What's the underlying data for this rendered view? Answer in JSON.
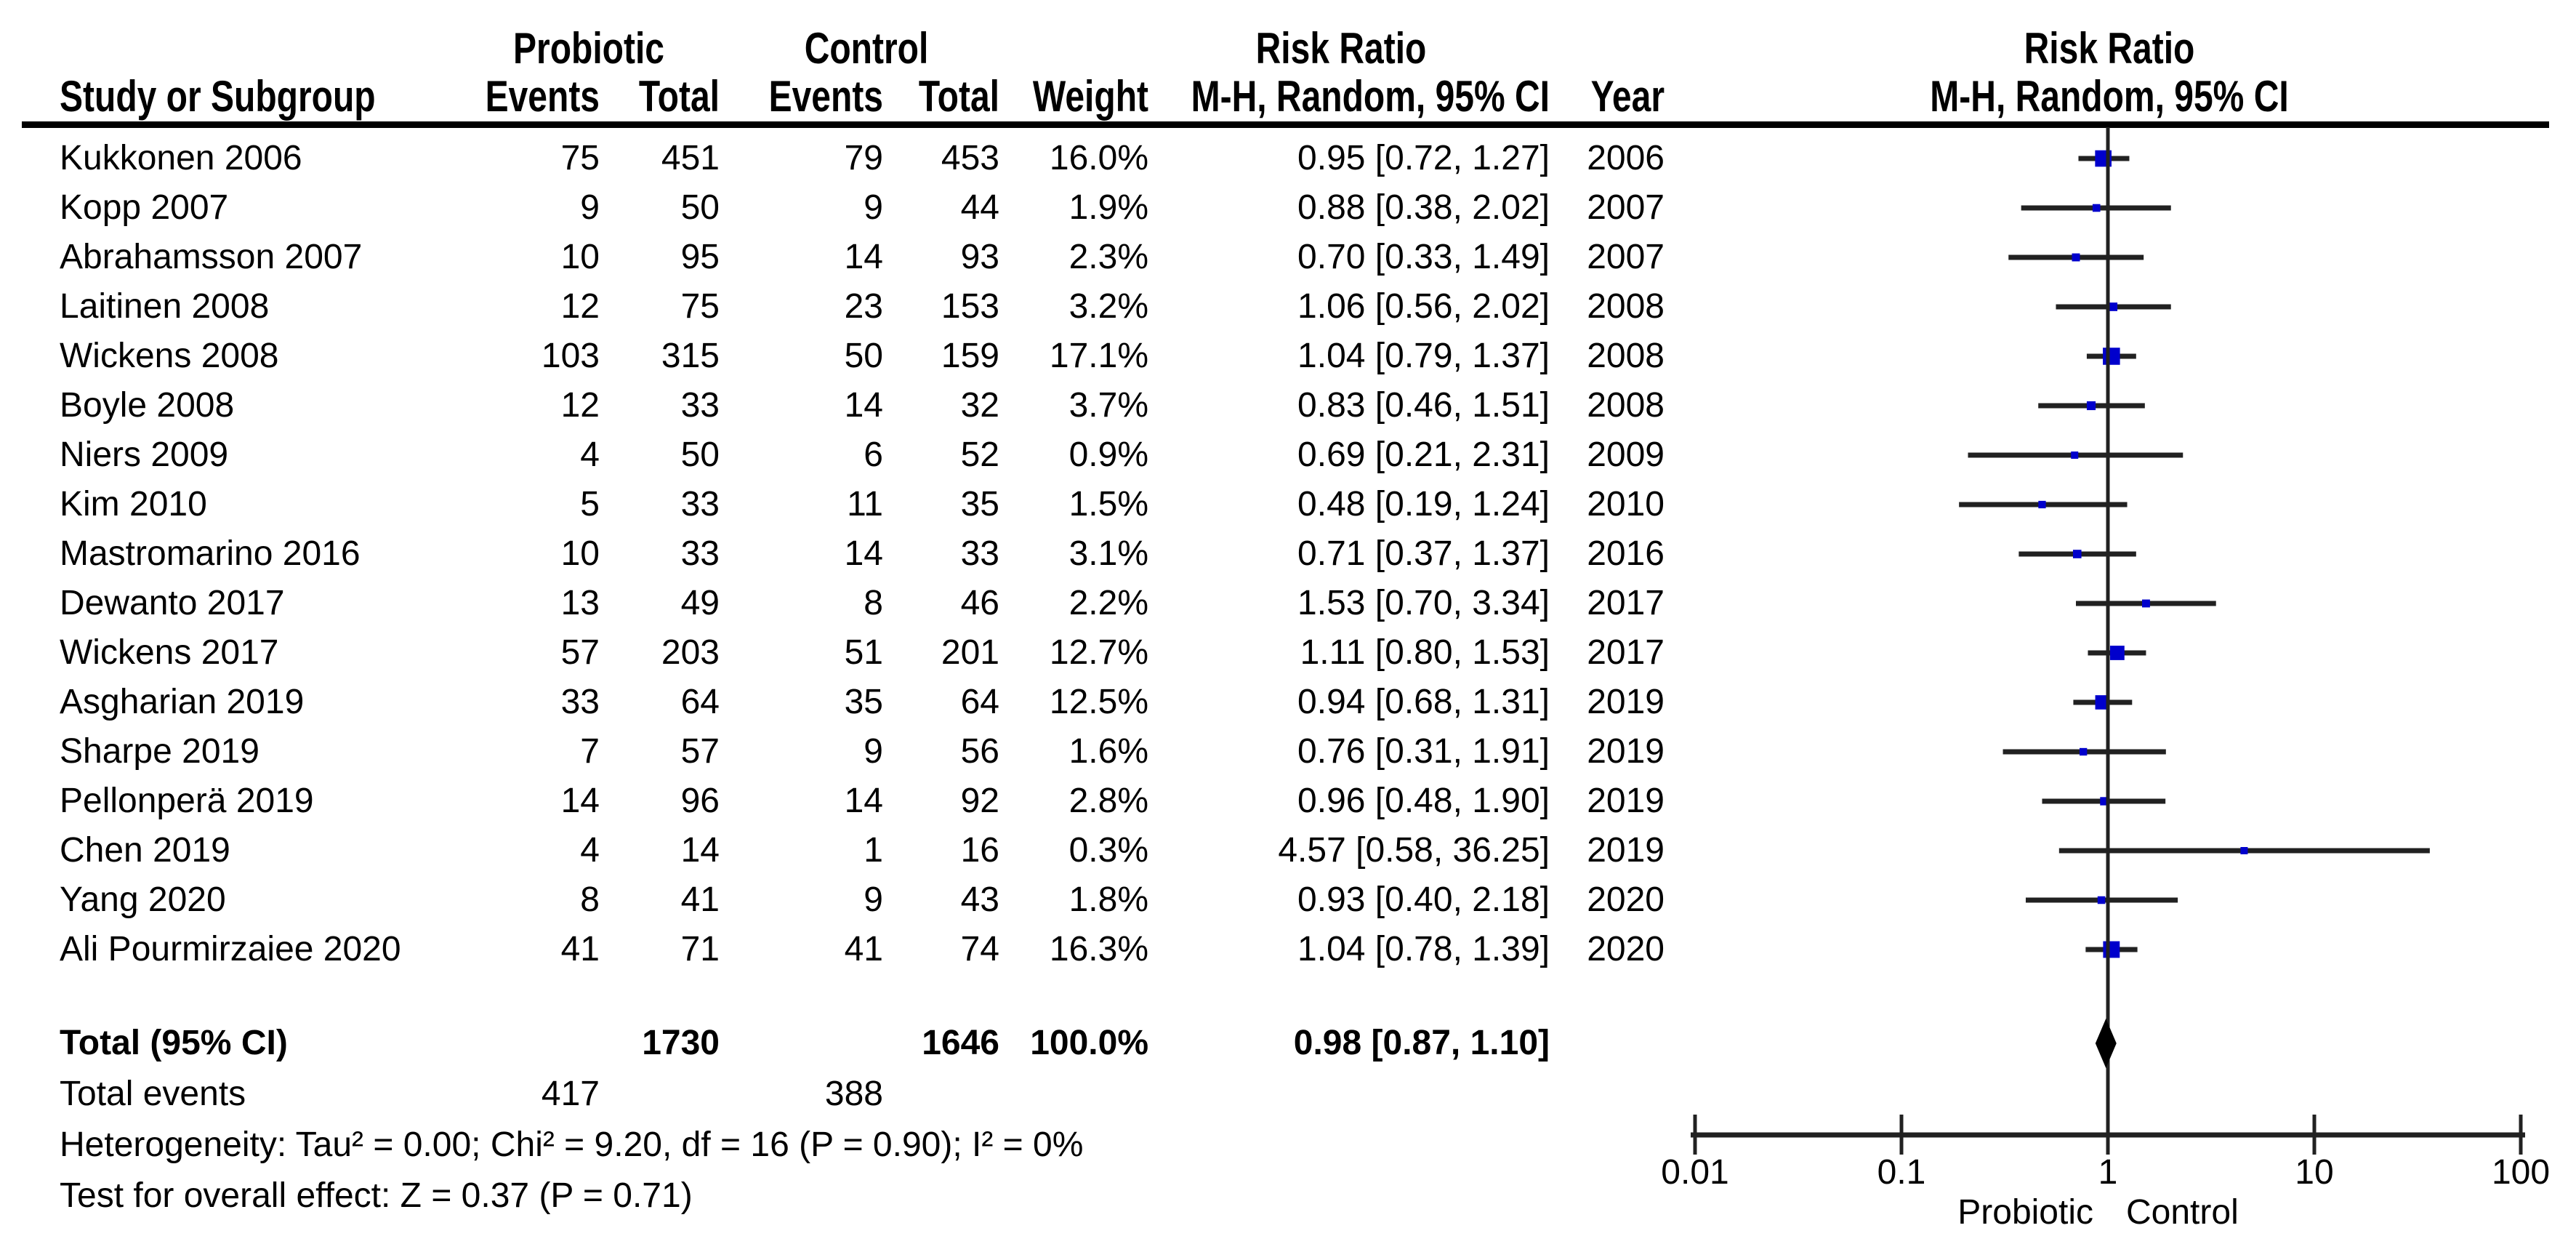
{
  "chart_data": {
    "type": "forest",
    "effect_measure": "Risk Ratio",
    "method": "M-H, Random, 95% CI",
    "group1": "Probiotic",
    "group2": "Control",
    "columns": [
      "Study or Subgroup",
      "Events",
      "Total",
      "Events",
      "Total",
      "Weight",
      "M-H, Random, 95% CI",
      "Year"
    ],
    "studies": [
      {
        "name": "Kukkonen 2006",
        "events1": "75",
        "total1": "451",
        "events2": "79",
        "total2": "453",
        "weight": "16.0%",
        "weight_value": 16.0,
        "rr": 0.95,
        "ci_low": 0.72,
        "ci_high": 1.27,
        "ci_text": "0.95 [0.72, 1.27]",
        "year": "2006"
      },
      {
        "name": "Kopp 2007",
        "events1": "9",
        "total1": "50",
        "events2": "9",
        "total2": "44",
        "weight": "1.9%",
        "weight_value": 1.9,
        "rr": 0.88,
        "ci_low": 0.38,
        "ci_high": 2.02,
        "ci_text": "0.88 [0.38, 2.02]",
        "year": "2007"
      },
      {
        "name": "Abrahamsson 2007",
        "events1": "10",
        "total1": "95",
        "events2": "14",
        "total2": "93",
        "weight": "2.3%",
        "weight_value": 2.3,
        "rr": 0.7,
        "ci_low": 0.33,
        "ci_high": 1.49,
        "ci_text": "0.70 [0.33, 1.49]",
        "year": "2007"
      },
      {
        "name": "Laitinen 2008",
        "events1": "12",
        "total1": "75",
        "events2": "23",
        "total2": "153",
        "weight": "3.2%",
        "weight_value": 3.2,
        "rr": 1.06,
        "ci_low": 0.56,
        "ci_high": 2.02,
        "ci_text": "1.06 [0.56, 2.02]",
        "year": "2008"
      },
      {
        "name": "Wickens 2008",
        "events1": "103",
        "total1": "315",
        "events2": "50",
        "total2": "159",
        "weight": "17.1%",
        "weight_value": 17.1,
        "rr": 1.04,
        "ci_low": 0.79,
        "ci_high": 1.37,
        "ci_text": "1.04 [0.79, 1.37]",
        "year": "2008"
      },
      {
        "name": "Boyle 2008",
        "events1": "12",
        "total1": "33",
        "events2": "14",
        "total2": "32",
        "weight": "3.7%",
        "weight_value": 3.7,
        "rr": 0.83,
        "ci_low": 0.46,
        "ci_high": 1.51,
        "ci_text": "0.83 [0.46, 1.51]",
        "year": "2008"
      },
      {
        "name": "Niers 2009",
        "events1": "4",
        "total1": "50",
        "events2": "6",
        "total2": "52",
        "weight": "0.9%",
        "weight_value": 0.9,
        "rr": 0.69,
        "ci_low": 0.21,
        "ci_high": 2.31,
        "ci_text": "0.69 [0.21, 2.31]",
        "year": "2009"
      },
      {
        "name": "Kim 2010",
        "events1": "5",
        "total1": "33",
        "events2": "11",
        "total2": "35",
        "weight": "1.5%",
        "weight_value": 1.5,
        "rr": 0.48,
        "ci_low": 0.19,
        "ci_high": 1.24,
        "ci_text": "0.48 [0.19, 1.24]",
        "year": "2010"
      },
      {
        "name": "Mastromarino 2016",
        "events1": "10",
        "total1": "33",
        "events2": "14",
        "total2": "33",
        "weight": "3.1%",
        "weight_value": 3.1,
        "rr": 0.71,
        "ci_low": 0.37,
        "ci_high": 1.37,
        "ci_text": "0.71 [0.37, 1.37]",
        "year": "2016"
      },
      {
        "name": "Dewanto 2017",
        "events1": "13",
        "total1": "49",
        "events2": "8",
        "total2": "46",
        "weight": "2.2%",
        "weight_value": 2.2,
        "rr": 1.53,
        "ci_low": 0.7,
        "ci_high": 3.34,
        "ci_text": "1.53 [0.70, 3.34]",
        "year": "2017"
      },
      {
        "name": "Wickens 2017",
        "events1": "57",
        "total1": "203",
        "events2": "51",
        "total2": "201",
        "weight": "12.7%",
        "weight_value": 12.7,
        "rr": 1.11,
        "ci_low": 0.8,
        "ci_high": 1.53,
        "ci_text": "1.11 [0.80, 1.53]",
        "year": "2017"
      },
      {
        "name": "Asgharian 2019",
        "events1": "33",
        "total1": "64",
        "events2": "35",
        "total2": "64",
        "weight": "12.5%",
        "weight_value": 12.5,
        "rr": 0.94,
        "ci_low": 0.68,
        "ci_high": 1.31,
        "ci_text": "0.94 [0.68, 1.31]",
        "year": "2019"
      },
      {
        "name": "Sharpe 2019",
        "events1": "7",
        "total1": "57",
        "events2": "9",
        "total2": "56",
        "weight": "1.6%",
        "weight_value": 1.6,
        "rr": 0.76,
        "ci_low": 0.31,
        "ci_high": 1.91,
        "ci_text": "0.76 [0.31, 1.91]",
        "year": "2019"
      },
      {
        "name": "Pellonperä 2019",
        "events1": "14",
        "total1": "96",
        "events2": "14",
        "total2": "92",
        "weight": "2.8%",
        "weight_value": 2.8,
        "rr": 0.96,
        "ci_low": 0.48,
        "ci_high": 1.9,
        "ci_text": "0.96 [0.48, 1.90]",
        "year": "2019"
      },
      {
        "name": "Chen 2019",
        "events1": "4",
        "total1": "14",
        "events2": "1",
        "total2": "16",
        "weight": "0.3%",
        "weight_value": 0.3,
        "rr": 4.57,
        "ci_low": 0.58,
        "ci_high": 36.25,
        "ci_text": "4.57 [0.58, 36.25]",
        "year": "2019"
      },
      {
        "name": "Yang 2020",
        "events1": "8",
        "total1": "41",
        "events2": "9",
        "total2": "43",
        "weight": "1.8%",
        "weight_value": 1.8,
        "rr": 0.93,
        "ci_low": 0.4,
        "ci_high": 2.18,
        "ci_text": "0.93 [0.40, 2.18]",
        "year": "2020"
      },
      {
        "name": "Ali Pourmirzaiee 2020",
        "events1": "41",
        "total1": "71",
        "events2": "41",
        "total2": "74",
        "weight": "16.3%",
        "weight_value": 16.3,
        "rr": 1.04,
        "ci_low": 0.78,
        "ci_high": 1.39,
        "ci_text": "1.04 [0.78, 1.39]",
        "year": "2020"
      }
    ],
    "total": {
      "label": "Total (95% CI)",
      "total1": "1730",
      "total2": "1646",
      "weight": "100.0%",
      "rr": 0.98,
      "ci_low": 0.87,
      "ci_high": 1.1,
      "ci_text": "0.98 [0.87, 1.10]"
    },
    "total_events": {
      "label": "Total events",
      "events1": "417",
      "events2": "388"
    },
    "heterogeneity": "Heterogeneity: Tau² = 0.00; Chi² = 9.20, df = 16 (P = 0.90); I² = 0%",
    "overall_effect": "Test for overall effect: Z = 0.37 (P = 0.71)",
    "axis": {
      "scale": "log",
      "ticks": [
        "0.01",
        "0.1",
        "1",
        "10",
        "100"
      ],
      "tick_values": [
        0.01,
        0.1,
        1,
        10,
        100
      ],
      "left_label": "Probiotic",
      "right_label": "Control"
    },
    "colors": {
      "marker": "#0000cc",
      "line": "#212121",
      "diamond": "#000000"
    }
  }
}
